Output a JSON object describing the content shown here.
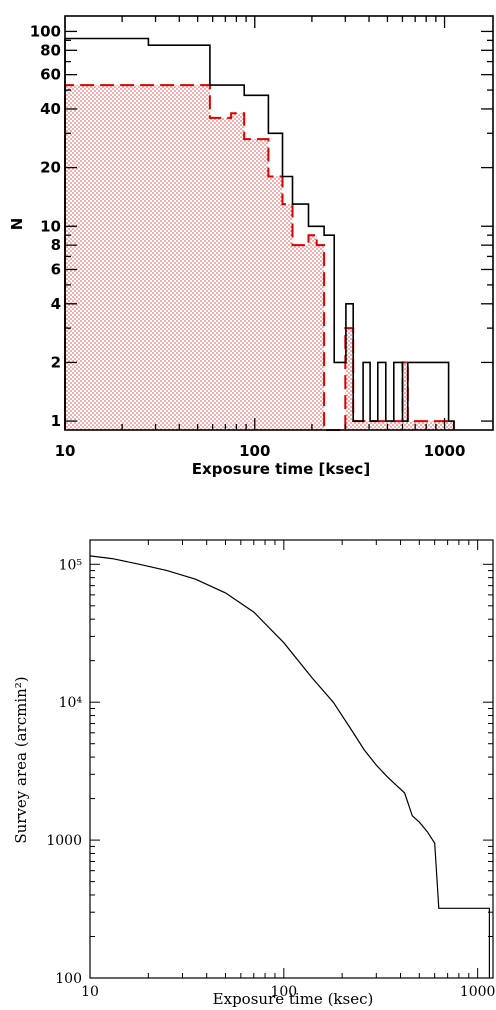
{
  "chart_data": [
    {
      "type": "histogram",
      "xlabel": "Exposure time [ksec]",
      "ylabel": "N",
      "xscale": "log",
      "yscale": "log",
      "xlim": [
        10,
        1800
      ],
      "ylim": [
        0.9,
        120
      ],
      "x_tick_labels": [
        "10",
        "100",
        "1000"
      ],
      "y_tick_labels": [
        "1",
        "2",
        "4",
        "6",
        "8",
        "10",
        "20",
        "40",
        "60",
        "80",
        "100"
      ],
      "grid": false,
      "colors": {
        "all": "#000000",
        "subset": "#e00000",
        "subset_fill": "#e83c3c"
      },
      "series": [
        {
          "style": "solid-black",
          "bin_edges": [
            10,
            27.5,
            58,
            88,
            118,
            140,
            158,
            192,
            232,
            262,
            302,
            330,
            346,
            372,
            405,
            445,
            490,
            540,
            600,
            640,
            1050,
            1120
          ],
          "counts": [
            92,
            85,
            53,
            47,
            30,
            18,
            13,
            10,
            9,
            2,
            4,
            1,
            1,
            2,
            1,
            2,
            1,
            2,
            1,
            2,
            1
          ]
        },
        {
          "style": "dashed-red-dotted-fill",
          "bin_edges": [
            10,
            58,
            75,
            88,
            118,
            140,
            158,
            192,
            212,
            232,
            252,
            300,
            330,
            346,
            372,
            405,
            445,
            490,
            540,
            600,
            640,
            1050,
            1120
          ],
          "counts": [
            53,
            36,
            38,
            28,
            18,
            13,
            8,
            9,
            8,
            0.9,
            0.9,
            3,
            1,
            1,
            1,
            1,
            1,
            1,
            1,
            2,
            1,
            1
          ]
        }
      ]
    },
    {
      "type": "line",
      "xlabel": "Exposure time (ksec)",
      "ylabel": "Survey area (arcmin²)",
      "xscale": "log",
      "yscale": "log",
      "xlim": [
        10,
        1200
      ],
      "ylim": [
        100,
        150000
      ],
      "x_tick_labels": [
        "10",
        "100",
        "1000"
      ],
      "y_tick_labels": [
        "100",
        "1000",
        "10⁴",
        "10⁵"
      ],
      "grid": false,
      "series": [
        {
          "x": [
            10,
            13,
            18,
            25,
            35,
            50,
            70,
            100,
            140,
            180,
            220,
            260,
            300,
            340,
            380,
            420,
            460,
            500,
            550,
            600,
            630,
            700,
            800,
            900,
            1000,
            1150,
            1150
          ],
          "y": [
            115000,
            110000,
            100000,
            90000,
            78000,
            62000,
            45000,
            27000,
            15000,
            10000,
            6500,
            4500,
            3500,
            2900,
            2500,
            2200,
            1500,
            1350,
            1150,
            950,
            320,
            320,
            320,
            320,
            320,
            320,
            100
          ]
        }
      ]
    }
  ]
}
